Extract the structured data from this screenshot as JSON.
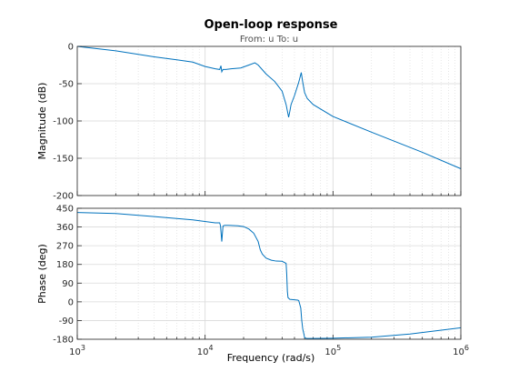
{
  "figure": {
    "title": "Open-loop response",
    "io_label": "From: u  To: u",
    "xlabel": "Frequency  (rad/s)"
  },
  "chart_data": [
    {
      "type": "line",
      "id": "magnitude",
      "ylabel": "Magnitude (dB)",
      "xscale": "log",
      "xlim": [
        1000,
        1000000
      ],
      "ylim": [
        -200,
        0
      ],
      "xticks": [
        1000,
        10000,
        100000,
        1000000
      ],
      "xtick_labels": [
        {
          "base": "10",
          "exp": "3"
        },
        {
          "base": "10",
          "exp": "4"
        },
        {
          "base": "10",
          "exp": "5"
        },
        {
          "base": "10",
          "exp": "6"
        }
      ],
      "yticks": [
        0,
        -50,
        -100,
        -150,
        -200
      ],
      "ytick_labels": [
        "0",
        "-50",
        "-100",
        "-150",
        "-200"
      ],
      "grid": true,
      "x": [
        1000,
        2000,
        4000,
        6000,
        8000,
        10000,
        12000,
        13000,
        13300,
        13500,
        13800,
        14500,
        16000,
        19000,
        22000,
        24500,
        26000,
        30000,
        35000,
        40000,
        43000,
        45000,
        46000,
        47000,
        50000,
        54000,
        56500,
        58000,
        60000,
        63000,
        70000,
        100000,
        200000,
        500000,
        1000000
      ],
      "y": [
        0,
        -6,
        -14,
        -18,
        -21,
        -27,
        -30,
        -31,
        -26,
        -34,
        -31,
        -31,
        -30,
        -29,
        -25,
        -22,
        -25,
        -37,
        -47,
        -60,
        -78,
        -95,
        -87,
        -78,
        -66,
        -48,
        -35,
        -48,
        -62,
        -70,
        -78,
        -94,
        -115,
        -142,
        -164
      ]
    },
    {
      "type": "line",
      "id": "phase",
      "ylabel": "Phase (deg)",
      "xscale": "log",
      "xlim": [
        1000,
        1000000
      ],
      "ylim": [
        -180,
        450
      ],
      "xticks": [
        1000,
        10000,
        100000,
        1000000
      ],
      "xtick_labels": [
        {
          "base": "10",
          "exp": "3"
        },
        {
          "base": "10",
          "exp": "4"
        },
        {
          "base": "10",
          "exp": "5"
        },
        {
          "base": "10",
          "exp": "6"
        }
      ],
      "yticks": [
        450,
        360,
        270,
        180,
        90,
        0,
        -90,
        -180
      ],
      "ytick_labels": [
        "450",
        "360",
        "270",
        "180",
        "90",
        "0",
        "-90",
        "-180"
      ],
      "grid": true,
      "x": [
        1000,
        2000,
        4000,
        8000,
        12000,
        13000,
        13200,
        13500,
        13800,
        14200,
        15000,
        18000,
        20000,
        22000,
        24000,
        26000,
        27000,
        28000,
        30000,
        33000,
        36000,
        40000,
        43000,
        43500,
        44000,
        44500,
        46000,
        50000,
        53000,
        54000,
        56000,
        57000,
        58000,
        59000,
        60000,
        62000,
        70000,
        100000,
        200000,
        400000,
        1000000
      ],
      "y": [
        430,
        425,
        410,
        394,
        380,
        380,
        365,
        290,
        365,
        368,
        368,
        366,
        362,
        350,
        330,
        290,
        250,
        230,
        210,
        200,
        196,
        195,
        185,
        130,
        50,
        20,
        12,
        10,
        8,
        6,
        -30,
        -90,
        -130,
        -150,
        -172,
        -176,
        -176,
        -175,
        -170,
        -155,
        -125
      ]
    }
  ]
}
